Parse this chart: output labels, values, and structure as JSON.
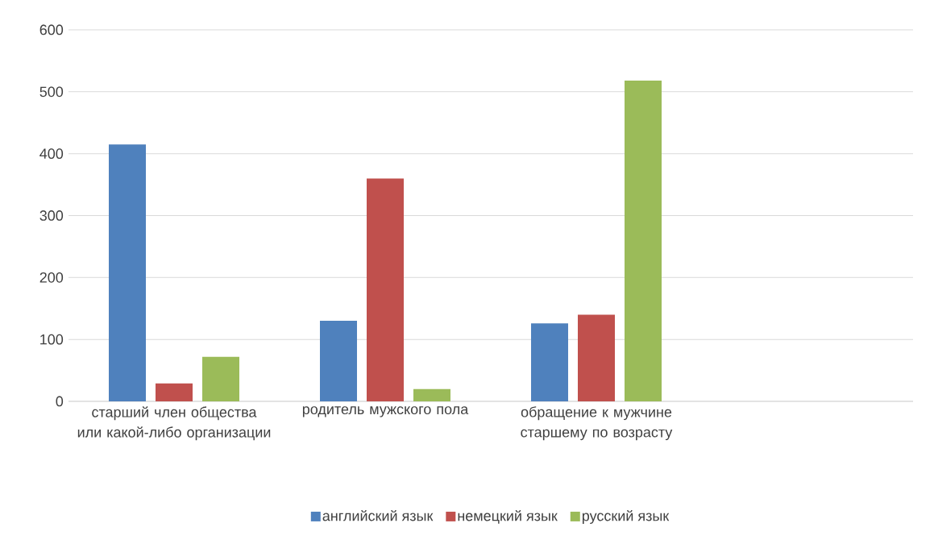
{
  "chart_data": {
    "type": "bar",
    "categories": [
      "старший член общества или какой-либо организации",
      "родитель мужского пола",
      "обращение к мужчине старшему по возрасту",
      null
    ],
    "series": [
      {
        "name": "английский язык",
        "color": "#4f81bd",
        "values": [
          415,
          130,
          126,
          null
        ]
      },
      {
        "name": "немецкий язык",
        "color": "#c0504d",
        "values": [
          29,
          360,
          140,
          null
        ]
      },
      {
        "name": "русский язык",
        "color": "#9bbb59",
        "values": [
          72,
          20,
          518,
          null
        ]
      }
    ],
    "ylim": [
      0,
      600
    ],
    "yticks": [
      0,
      100,
      200,
      300,
      400,
      500,
      600
    ],
    "grid": "y",
    "legend": "bottom"
  }
}
